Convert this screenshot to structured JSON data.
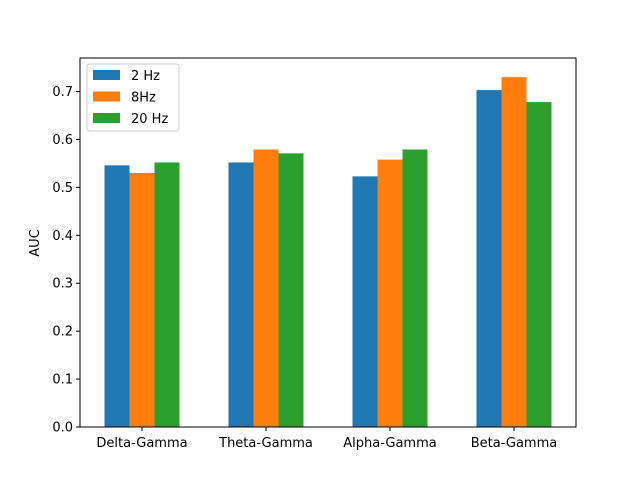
{
  "chart_data": {
    "type": "bar",
    "title": "",
    "xlabel": "",
    "ylabel": "AUC",
    "ylim": [
      0,
      0.77
    ],
    "yticks": [
      0.0,
      0.1,
      0.2,
      0.3,
      0.4,
      0.5,
      0.6,
      0.7
    ],
    "ytick_labels": [
      "0.0",
      "0.1",
      "0.2",
      "0.3",
      "0.4",
      "0.5",
      "0.6",
      "0.7"
    ],
    "categories": [
      "Delta-Gamma",
      "Theta-Gamma",
      "Alpha-Gamma",
      "Beta-Gamma"
    ],
    "series": [
      {
        "name": "2 Hz",
        "color": "#1f77b4",
        "values": [
          0.546,
          0.552,
          0.523,
          0.703
        ]
      },
      {
        "name": "8Hz",
        "color": "#ff7f0e",
        "values": [
          0.53,
          0.579,
          0.558,
          0.73
        ]
      },
      {
        "name": "20 Hz",
        "color": "#2ca02c",
        "values": [
          0.552,
          0.571,
          0.579,
          0.678
        ]
      }
    ],
    "legend_position": "top-left",
    "grid": false
  }
}
